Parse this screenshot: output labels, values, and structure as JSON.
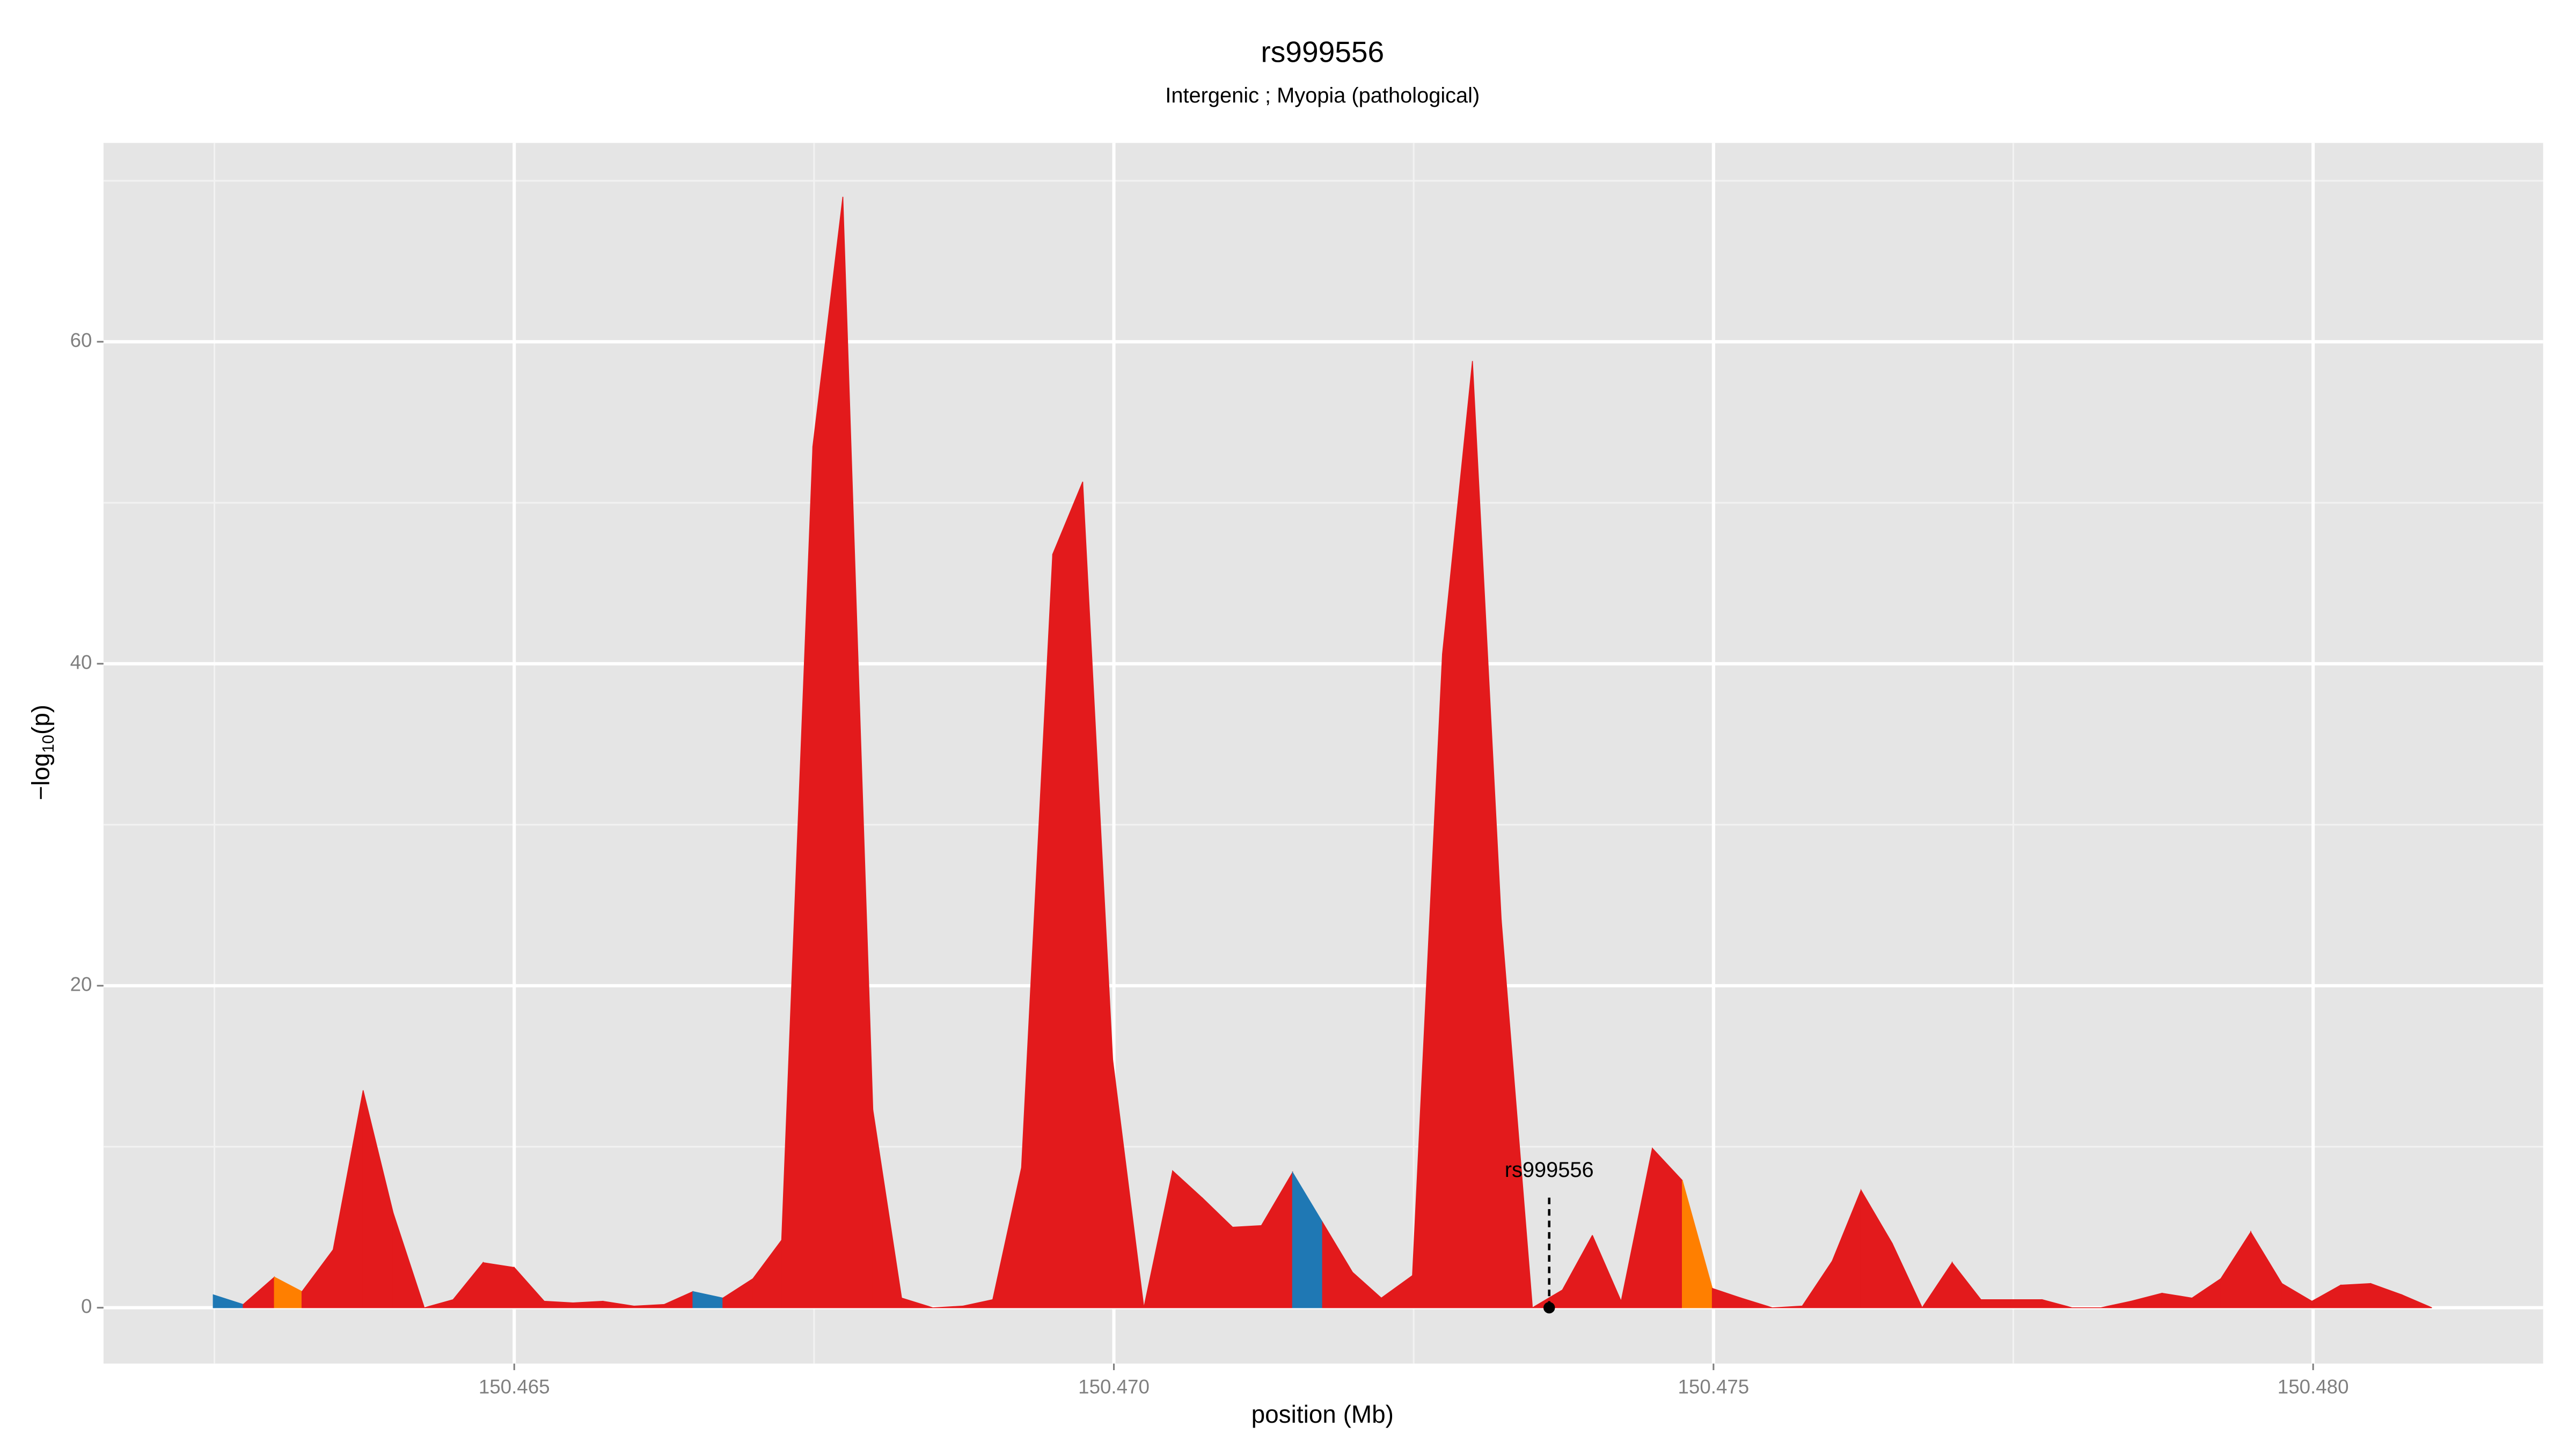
{
  "chart_data": {
    "type": "area",
    "title": "rs999556",
    "subtitle": "Intergenic ; Myopia (pathological)",
    "xlabel": "position (Mb)",
    "ylabel": {
      "main": "−log",
      "sub": "10",
      "end": "(p)"
    },
    "x": [
      150.46249,
      150.46274,
      150.463,
      150.46323,
      150.46349,
      150.46374,
      150.46399,
      150.46425,
      150.46449,
      150.46474,
      150.465,
      150.46525,
      150.46549,
      150.46574,
      150.466,
      150.46625,
      150.46649,
      150.46674,
      150.46699,
      150.46723,
      150.46749,
      150.46774,
      150.46799,
      150.46823,
      150.46849,
      150.46874,
      150.46899,
      150.46923,
      150.46949,
      150.46974,
      150.46999,
      150.47025,
      150.47049,
      150.47074,
      150.47099,
      150.47123,
      150.47149,
      150.47174,
      150.47199,
      150.47223,
      150.47249,
      150.47274,
      150.47299,
      150.47323,
      150.47349,
      150.47374,
      150.47399,
      150.47423,
      150.47449,
      150.47474,
      150.47499,
      150.47523,
      150.47549,
      150.47574,
      150.47599,
      150.47623,
      150.47649,
      150.47674,
      150.47699,
      150.47723,
      150.47748,
      150.47774,
      150.47799,
      150.47823,
      150.47848,
      150.47874,
      150.47899,
      150.47923,
      150.47948,
      150.47974,
      150.47999,
      150.48023,
      150.48048,
      150.48074,
      150.48099
    ],
    "values": [
      0.8,
      0.2,
      1.9,
      1.0,
      3.6,
      13.5,
      5.9,
      0,
      0.5,
      2.8,
      2.5,
      0.4,
      0.3,
      0.4,
      0.1,
      0.2,
      1.0,
      0.6,
      1.8,
      4.2,
      53.5,
      69.0,
      12.3,
      0.6,
      0,
      0.1,
      0.5,
      8.7,
      46.8,
      51.3,
      15.4,
      0,
      8.5,
      6.8,
      5.0,
      5.1,
      8.4,
      5.3,
      2.2,
      0.6,
      2.0,
      40.6,
      58.8,
      24.1,
      0,
      1.1,
      4.5,
      0.4,
      9.9,
      7.9,
      1.2,
      0.6,
      0,
      0.1,
      2.9,
      7.3,
      4.0,
      0,
      2.8,
      0.5,
      0.5,
      0.5,
      0,
      0,
      0.4,
      0.9,
      0.6,
      1.8,
      4.7,
      1.5,
      0.4,
      1.4,
      1.5,
      0.8,
      0
    ],
    "segment_colors": [
      "#1f78b4",
      "#e31a1c",
      "#ff7f00",
      "#e31a1c",
      "#e31a1c",
      "#e31a1c",
      "#e31a1c",
      "#e31a1c",
      "#e31a1c",
      "#e31a1c",
      "#e31a1c",
      "#e31a1c",
      "#e31a1c",
      "#e31a1c",
      "#e31a1c",
      "#e31a1c",
      "#1f78b4",
      "#e31a1c",
      "#e31a1c",
      "#e31a1c",
      "#e31a1c",
      "#e31a1c",
      "#e31a1c",
      "#e31a1c",
      "#e31a1c",
      "#e31a1c",
      "#e31a1c",
      "#e31a1c",
      "#e31a1c",
      "#e31a1c",
      "#e31a1c",
      "#e31a1c",
      "#e31a1c",
      "#e31a1c",
      "#e31a1c",
      "#e31a1c",
      "#1f78b4",
      "#e31a1c",
      "#e31a1c",
      "#e31a1c",
      "#e31a1c",
      "#e31a1c",
      "#e31a1c",
      "#e31a1c",
      "#e31a1c",
      "#e31a1c",
      "#e31a1c",
      "#e31a1c",
      "#e31a1c",
      "#ff7f00",
      "#e31a1c",
      "#e31a1c",
      "#e31a1c",
      "#e31a1c",
      "#e31a1c",
      "#e31a1c",
      "#e31a1c",
      "#e31a1c",
      "#e31a1c",
      "#e31a1c",
      "#e31a1c",
      "#e31a1c",
      "#e31a1c",
      "#e31a1c",
      "#e31a1c",
      "#e31a1c",
      "#e31a1c",
      "#e31a1c",
      "#e31a1c",
      "#e31a1c",
      "#e31a1c",
      "#e31a1c",
      "#e31a1c",
      "#e31a1c"
    ],
    "annotation": {
      "text": "rs999556",
      "x": 150.47363,
      "y": 0
    },
    "xlim": [
      150.461575,
      150.481918
    ],
    "ylim": [
      -3.47,
      72.35
    ],
    "xticks": [
      150.465,
      {
        "value": 150.47,
        "label": "150.470"
      },
      150.475,
      {
        "value": 150.48,
        "label": "150.480"
      }
    ],
    "yticks": [
      0,
      20,
      40,
      60
    ],
    "x_minor_grid": [
      150.4625,
      150.4675,
      150.4725,
      150.4775
    ],
    "y_minor_grid": [
      10,
      30,
      50,
      70
    ],
    "grid": true
  }
}
